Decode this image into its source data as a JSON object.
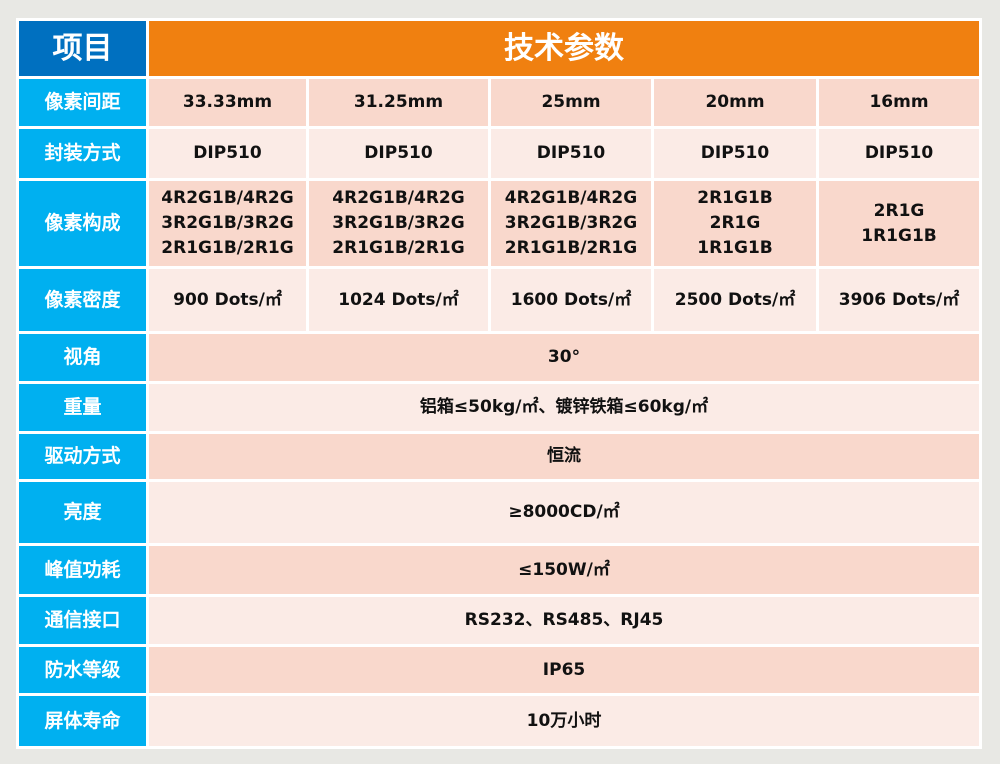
{
  "header": {
    "item": "项目",
    "params": "技术参数"
  },
  "colors": {
    "header_item": "#0070c0",
    "header_params": "#f08010",
    "label": "#00b0f0",
    "row_dark": "#f9d8cc",
    "row_light": "#fbebe6"
  },
  "rows": [
    {
      "label": "像素间距",
      "values": [
        "33.33mm",
        "31.25mm",
        "25mm",
        "20mm",
        "16mm"
      ]
    },
    {
      "label": "封装方式",
      "values": [
        "DIP510",
        "DIP510",
        "DIP510",
        "DIP510",
        "DIP510"
      ]
    },
    {
      "label": "像素构成",
      "values": [
        "4R2G1B/4R2G\n3R2G1B/3R2G\n2R1G1B/2R1G",
        "4R2G1B/4R2G\n3R2G1B/3R2G\n2R1G1B/2R1G",
        "4R2G1B/4R2G\n3R2G1B/3R2G\n2R1G1B/2R1G",
        "2R1G1B\n2R1G\n1R1G1B",
        "2R1G\n1R1G1B"
      ]
    },
    {
      "label": "像素密度",
      "values": [
        "900 Dots/㎡",
        "1024 Dots/㎡",
        "1600 Dots/㎡",
        "2500 Dots/㎡",
        "3906 Dots/㎡"
      ]
    },
    {
      "label": "视角",
      "value": "30°"
    },
    {
      "label": "重量",
      "value": "铝箱≤50kg/㎡、镀锌铁箱≤60kg/㎡"
    },
    {
      "label": "驱动方式",
      "value": "恒流"
    },
    {
      "label": "亮度",
      "value": "≥8000CD/㎡"
    },
    {
      "label": "峰值功耗",
      "value": "≤150W/㎡"
    },
    {
      "label": "通信接口",
      "value": "RS232、RS485、RJ45"
    },
    {
      "label": "防水等级",
      "value": "IP65"
    },
    {
      "label": "屏体寿命",
      "value": "10万小时"
    }
  ]
}
